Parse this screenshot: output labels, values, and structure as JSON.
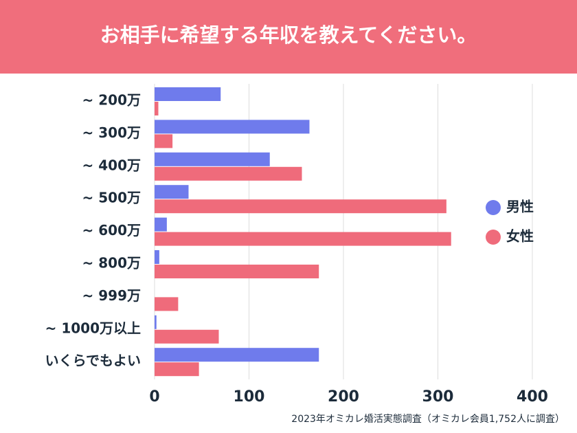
{
  "chart_data": {
    "type": "bar",
    "orientation": "horizontal",
    "title": "お相手に希望する年収を教えてください。",
    "source": "2023年オミカレ婚活実態調査（オミカレ会員1,752人に調査）",
    "categories": [
      "~ 200万",
      "~ 300万",
      "~ 400万",
      "~ 500万",
      "~ 600万",
      "~ 800万",
      "~ 999万",
      "~ 1000万以上",
      "いくらでもよい"
    ],
    "series": [
      {
        "name": "男性",
        "color": "#6f7bec",
        "values": [
          70,
          164,
          122,
          36,
          13,
          5,
          0,
          2,
          174
        ]
      },
      {
        "name": "女性",
        "color": "#ef6b7b",
        "values": [
          4,
          19,
          156,
          309,
          314,
          174,
          25,
          68,
          47
        ]
      }
    ],
    "xlim": [
      0,
      400
    ],
    "xticks": [
      0,
      100,
      200,
      300,
      400
    ],
    "grid": true,
    "legend": "right"
  }
}
